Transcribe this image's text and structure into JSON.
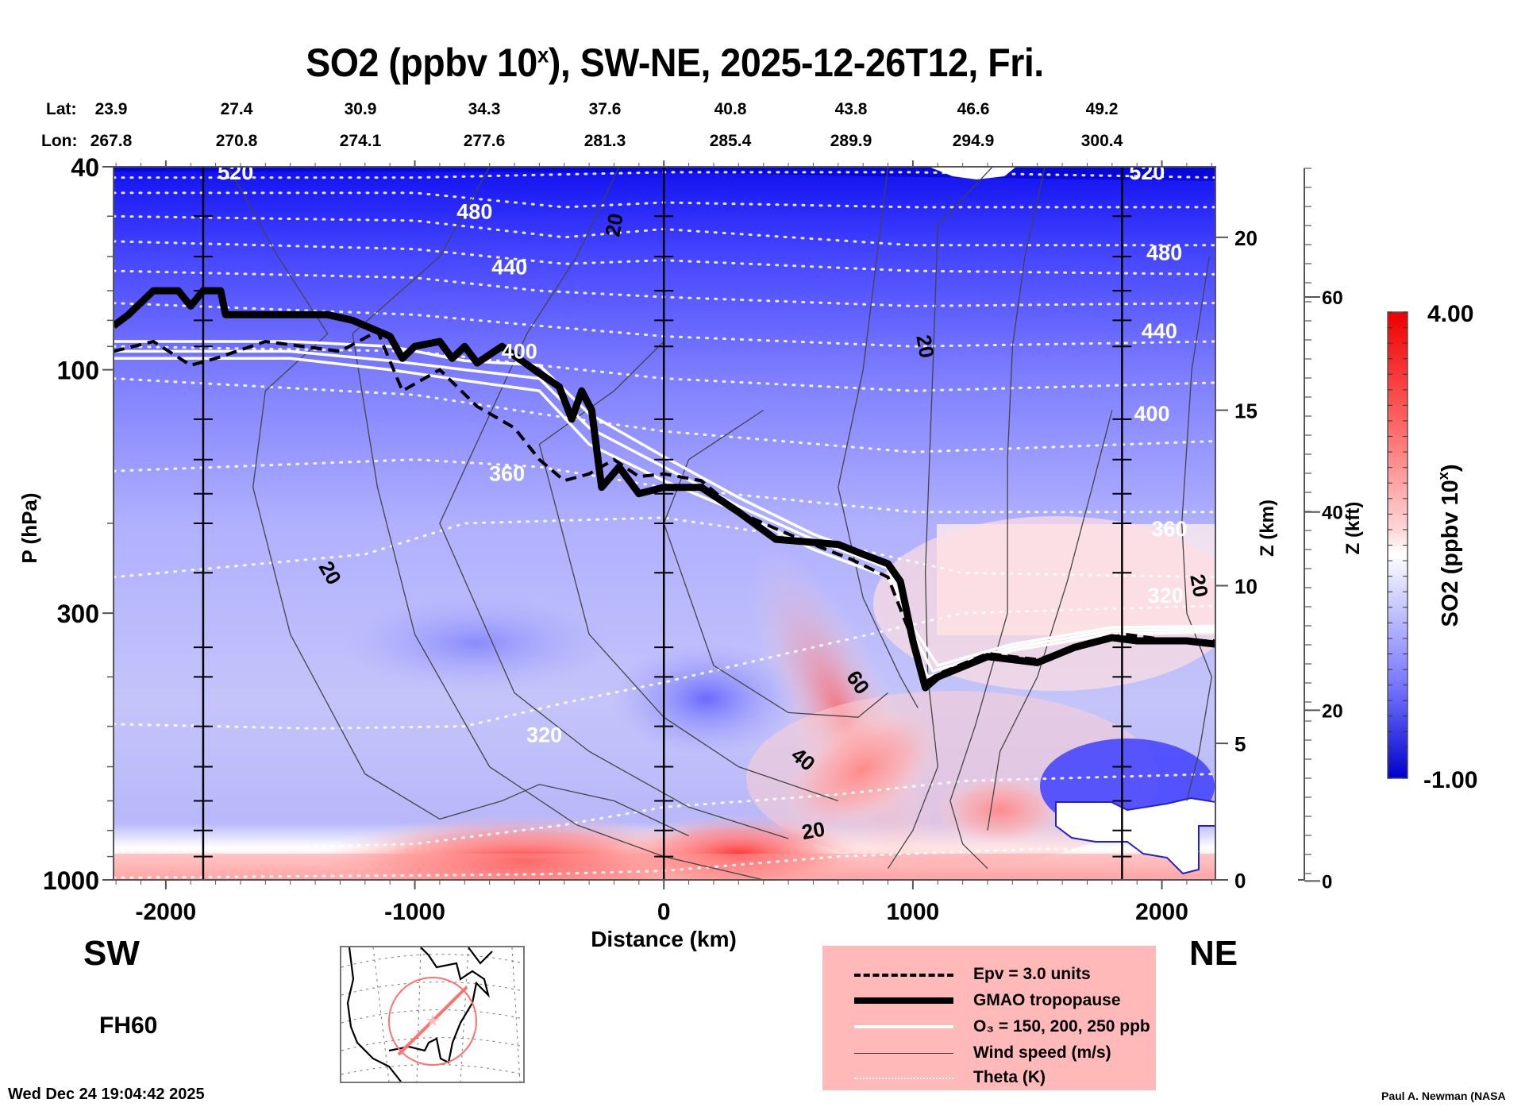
{
  "title": {
    "main": "SO2 (ppbv 10",
    "sup": "x",
    "rest": "), SW-NE, 2025-12-26T12, Fri."
  },
  "header": {
    "lat_label": "Lat:",
    "lon_label": "Lon:",
    "lat": [
      "23.9",
      "27.4",
      "30.9",
      "34.3",
      "37.6",
      "40.8",
      "43.8",
      "46.6",
      "49.2"
    ],
    "lon": [
      "267.8",
      "270.8",
      "274.1",
      "277.6",
      "281.3",
      "285.4",
      "289.9",
      "294.9",
      "300.4"
    ]
  },
  "labels": {
    "sw": "SW",
    "ne": "NE",
    "forecast_hour": "FH60",
    "timestamp": "Wed Dec 24 19:04:42 2025",
    "credit": "Paul A. Newman (NASA"
  },
  "legend": {
    "items": [
      {
        "style": "dashed",
        "label": "Epv = 3.0 units"
      },
      {
        "style": "thick",
        "label": "GMAO tropopause"
      },
      {
        "style": "white",
        "label": "O₃ = 150, 200, 250 ppb"
      },
      {
        "style": "thin",
        "label": "Wind speed (m/s)"
      },
      {
        "style": "dotted",
        "label": "Theta (K)"
      }
    ]
  },
  "chart_data": {
    "type": "heatmap",
    "title": "SO2 (ppbv 10^x), SW-NE, 2025-12-26T12, Fri.",
    "xlabel": "Distance (km)",
    "ylabel": "P (hPa)",
    "y2label": "Z (km)",
    "y3label": "Z (kft)",
    "colorbar_label": "SO2 (ppbv 10^x)",
    "colorbar_range": [
      -1.0,
      4.0
    ],
    "colorbar_tick_labels": [
      "4.00",
      "-1.00"
    ],
    "colorscale": [
      "#0000cc",
      "#3a3aff",
      "#8888ff",
      "#c8c8ff",
      "#ffffff",
      "#ffc8c8",
      "#ff8080",
      "#ff4040",
      "#ee0000"
    ],
    "xlim": [
      -2210,
      2215
    ],
    "x_ticks": [
      -2000,
      -1000,
      0,
      1000,
      2000
    ],
    "x_tick_labels": [
      "-2000",
      "-1000",
      "0",
      "1000",
      "2000"
    ],
    "ylim_hpa": [
      1000,
      40
    ],
    "y_scale": "log",
    "y_ticks_hpa": [
      40,
      100,
      300,
      1000
    ],
    "y_tick_labels": [
      "40",
      "100",
      "300",
      "1000"
    ],
    "z_km_ticks": [
      0,
      5,
      10,
      15,
      20
    ],
    "z_km_tick_hpa": [
      1000,
      540,
      265,
      120,
      55
    ],
    "z_kft_ticks": [
      0,
      20,
      40,
      60
    ],
    "z_kft_tick_hpa": [
      1005,
      465,
      190,
      72
    ],
    "section_lines_km": [
      -1850,
      0,
      1840
    ],
    "theta_levels_K": [
      320,
      360,
      400,
      440,
      480,
      520
    ],
    "theta_label_positions": [
      {
        "label": "520",
        "x": -1720,
        "p": 41
      },
      {
        "label": "480",
        "x": -760,
        "p": 49
      },
      {
        "label": "440",
        "x": -620,
        "p": 63
      },
      {
        "label": "400",
        "x": -580,
        "p": 92
      },
      {
        "label": "360",
        "x": -630,
        "p": 160
      },
      {
        "label": "320",
        "x": -480,
        "p": 520
      },
      {
        "label": "520",
        "x": 1940,
        "p": 41
      },
      {
        "label": "480",
        "x": 2010,
        "p": 59
      },
      {
        "label": "440",
        "x": 1990,
        "p": 84
      },
      {
        "label": "400",
        "x": 1960,
        "p": 122
      },
      {
        "label": "360",
        "x": 2030,
        "p": 205
      },
      {
        "label": "320",
        "x": 2015,
        "p": 277
      }
    ],
    "theta_lines": [
      {
        "K": 520,
        "pts": [
          [
            -2210,
            42
          ],
          [
            -1000,
            42
          ],
          [
            0,
            41
          ],
          [
            1000,
            41
          ],
          [
            2215,
            42
          ]
        ]
      },
      {
        "K": 500,
        "pts": [
          [
            -2210,
            45
          ],
          [
            -1000,
            45
          ],
          [
            -400,
            48
          ],
          [
            0,
            47
          ],
          [
            1000,
            48
          ],
          [
            2215,
            48
          ]
        ]
      },
      {
        "K": 480,
        "pts": [
          [
            -2210,
            50
          ],
          [
            -1000,
            51
          ],
          [
            -400,
            55
          ],
          [
            0,
            53
          ],
          [
            1000,
            57
          ],
          [
            2215,
            57
          ]
        ]
      },
      {
        "K": 460,
        "pts": [
          [
            -2210,
            56
          ],
          [
            -1000,
            58
          ],
          [
            -400,
            62
          ],
          [
            0,
            61
          ],
          [
            1000,
            64
          ],
          [
            2215,
            65
          ]
        ]
      },
      {
        "K": 440,
        "pts": [
          [
            -2210,
            64
          ],
          [
            -1000,
            66
          ],
          [
            -500,
            70
          ],
          [
            0,
            72
          ],
          [
            1000,
            75
          ],
          [
            2215,
            74
          ]
        ]
      },
      {
        "K": 420,
        "pts": [
          [
            -2210,
            74
          ],
          [
            -1000,
            78
          ],
          [
            -500,
            82
          ],
          [
            0,
            86
          ],
          [
            1000,
            90
          ],
          [
            2215,
            88
          ]
        ]
      },
      {
        "K": 400,
        "pts": [
          [
            -2210,
            90
          ],
          [
            -1000,
            92
          ],
          [
            -500,
            98
          ],
          [
            0,
            104
          ],
          [
            1000,
            110
          ],
          [
            2215,
            106
          ]
        ]
      },
      {
        "K": 380,
        "pts": [
          [
            -2210,
            104
          ],
          [
            -1000,
            112
          ],
          [
            -500,
            122
          ],
          [
            0,
            132
          ],
          [
            1000,
            145
          ],
          [
            2215,
            138
          ]
        ]
      },
      {
        "K": 360,
        "pts": [
          [
            -2210,
            158
          ],
          [
            -1000,
            150
          ],
          [
            -500,
            155
          ],
          [
            0,
            170
          ],
          [
            1000,
            190
          ],
          [
            2215,
            190
          ]
        ]
      },
      {
        "K": 340,
        "pts": [
          [
            -2210,
            255
          ],
          [
            -1200,
            230
          ],
          [
            -800,
            200
          ],
          [
            0,
            195
          ],
          [
            600,
            215
          ],
          [
            1200,
            250
          ],
          [
            2215,
            255
          ]
        ]
      },
      {
        "K": 320,
        "pts": [
          [
            -2210,
            495
          ],
          [
            -1400,
            505
          ],
          [
            -800,
            500
          ],
          [
            -400,
            450
          ],
          [
            0,
            410
          ],
          [
            600,
            350
          ],
          [
            1200,
            300
          ],
          [
            2215,
            290
          ]
        ]
      },
      {
        "K": 310,
        "pts": [
          [
            -2210,
            880
          ],
          [
            -1000,
            850
          ],
          [
            -400,
            780
          ],
          [
            0,
            720
          ],
          [
            700,
            680
          ],
          [
            1200,
            640
          ],
          [
            2215,
            620
          ]
        ]
      },
      {
        "K": 300,
        "pts": [
          [
            -2210,
            990
          ],
          [
            -1000,
            980
          ],
          [
            -500,
            975
          ],
          [
            0,
            960
          ],
          [
            700,
            900
          ],
          [
            1500,
            870
          ],
          [
            2215,
            880
          ]
        ]
      }
    ],
    "tropopause_pts": [
      [
        -2210,
        82
      ],
      [
        -2150,
        78
      ],
      [
        -2050,
        70
      ],
      [
        -1950,
        70
      ],
      [
        -1900,
        75
      ],
      [
        -1850,
        70
      ],
      [
        -1780,
        70
      ],
      [
        -1760,
        78
      ],
      [
        -1500,
        78
      ],
      [
        -1350,
        78
      ],
      [
        -1250,
        80
      ],
      [
        -1100,
        86
      ],
      [
        -1050,
        95
      ],
      [
        -1000,
        90
      ],
      [
        -900,
        88
      ],
      [
        -850,
        95
      ],
      [
        -800,
        90
      ],
      [
        -750,
        97
      ],
      [
        -650,
        90
      ],
      [
        -520,
        100
      ],
      [
        -420,
        108
      ],
      [
        -370,
        125
      ],
      [
        -330,
        110
      ],
      [
        -290,
        120
      ],
      [
        -250,
        170
      ],
      [
        -180,
        155
      ],
      [
        -100,
        175
      ],
      [
        0,
        170
      ],
      [
        150,
        170
      ],
      [
        300,
        190
      ],
      [
        450,
        215
      ],
      [
        600,
        218
      ],
      [
        700,
        220
      ],
      [
        800,
        230
      ],
      [
        900,
        240
      ],
      [
        950,
        260
      ],
      [
        1000,
        340
      ],
      [
        1050,
        420
      ],
      [
        1100,
        400
      ],
      [
        1300,
        365
      ],
      [
        1500,
        375
      ],
      [
        1650,
        350
      ],
      [
        1800,
        335
      ],
      [
        1900,
        340
      ],
      [
        2100,
        340
      ],
      [
        2215,
        345
      ]
    ],
    "epv_pts": [
      [
        -2210,
        92
      ],
      [
        -2050,
        88
      ],
      [
        -1900,
        98
      ],
      [
        -1800,
        95
      ],
      [
        -1600,
        88
      ],
      [
        -1300,
        92
      ],
      [
        -1150,
        84
      ],
      [
        -1050,
        110
      ],
      [
        -900,
        100
      ],
      [
        -750,
        118
      ],
      [
        -600,
        130
      ],
      [
        -500,
        150
      ],
      [
        -400,
        165
      ],
      [
        -300,
        160
      ],
      [
        -200,
        150
      ],
      [
        -100,
        162
      ],
      [
        0,
        160
      ],
      [
        150,
        165
      ],
      [
        300,
        190
      ],
      [
        450,
        205
      ],
      [
        600,
        220
      ],
      [
        750,
        235
      ],
      [
        900,
        255
      ],
      [
        1000,
        340
      ],
      [
        1050,
        410
      ],
      [
        1100,
        395
      ],
      [
        1300,
        360
      ],
      [
        1500,
        370
      ],
      [
        1700,
        345
      ],
      [
        1850,
        330
      ],
      [
        2050,
        340
      ],
      [
        2215,
        340
      ]
    ],
    "o3_lines": [
      {
        "ppb": 150,
        "pts": [
          [
            -2210,
            95
          ],
          [
            -1500,
            95
          ],
          [
            -1100,
            100
          ],
          [
            -800,
            105
          ],
          [
            -500,
            110
          ],
          [
            -300,
            140
          ],
          [
            0,
            165
          ],
          [
            300,
            190
          ],
          [
            600,
            225
          ],
          [
            900,
            255
          ],
          [
            1000,
            320
          ],
          [
            1100,
            380
          ],
          [
            1400,
            345
          ],
          [
            1800,
            320
          ],
          [
            2215,
            318
          ]
        ]
      },
      {
        "ppb": 200,
        "pts": [
          [
            -2210,
            92
          ],
          [
            -1500,
            92
          ],
          [
            -1100,
            96
          ],
          [
            -800,
            100
          ],
          [
            -500,
            104
          ],
          [
            -300,
            130
          ],
          [
            0,
            155
          ],
          [
            300,
            185
          ],
          [
            600,
            215
          ],
          [
            900,
            245
          ],
          [
            1000,
            330
          ],
          [
            1080,
            390
          ],
          [
            1400,
            350
          ],
          [
            1800,
            325
          ],
          [
            2215,
            322
          ]
        ]
      },
      {
        "ppb": 250,
        "pts": [
          [
            -2210,
            88
          ],
          [
            -1500,
            88
          ],
          [
            -1100,
            90
          ],
          [
            -800,
            96
          ],
          [
            -500,
            98
          ],
          [
            -300,
            122
          ],
          [
            0,
            148
          ],
          [
            300,
            178
          ],
          [
            600,
            210
          ],
          [
            900,
            238
          ],
          [
            1000,
            340
          ],
          [
            1060,
            400
          ],
          [
            1400,
            355
          ],
          [
            1800,
            330
          ],
          [
            2215,
            326
          ]
        ]
      }
    ],
    "wind_contour_labels": [
      {
        "label": "20",
        "x": -1340,
        "p": 250,
        "rot": 60
      },
      {
        "label": "20",
        "x": -200,
        "p": 52,
        "rot": -80
      },
      {
        "label": "20",
        "x": 1050,
        "p": 90,
        "rot": 80
      },
      {
        "label": "20",
        "x": 2150,
        "p": 265,
        "rot": 80
      },
      {
        "label": "60",
        "x": 780,
        "p": 410,
        "rot": 55
      },
      {
        "label": "40",
        "x": 560,
        "p": 580,
        "rot": 40
      },
      {
        "label": "20",
        "x": 600,
        "p": 800,
        "rot": -10
      }
    ]
  }
}
